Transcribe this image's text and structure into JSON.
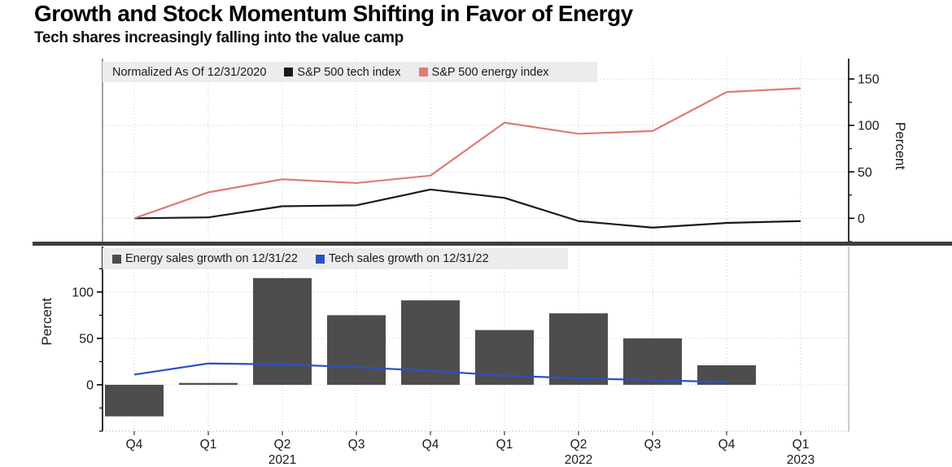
{
  "page": {
    "title": "Growth and Stock Momentum Shifting in Favor of Energy",
    "subtitle": "Tech shares increasingly falling into the value camp"
  },
  "colors": {
    "tech_index_line": "#1a1a1a",
    "energy_index_line": "#dd7c74",
    "energy_sales_bar": "#4d4d4d",
    "tech_sales_line": "#2a50c8",
    "legend_background": "#ececec",
    "divider": "#3f3f3f",
    "gridline": "#c9c9c9"
  },
  "chart_data": [
    {
      "type": "line",
      "panel": "top",
      "legend_note": "Normalized As Of 12/31/2020",
      "categories": [
        "Q4 2020",
        "Q1 2021",
        "Q2 2021",
        "Q3 2021",
        "Q4 2021",
        "Q1 2022",
        "Q2 2022",
        "Q3 2022",
        "Q4 2022",
        "Q1 2023"
      ],
      "series": [
        {
          "name": "S&P 500 tech index",
          "type": "line",
          "color": "#1a1a1a",
          "values": [
            0,
            1,
            13,
            14,
            31,
            22,
            -3,
            -10,
            -5,
            -3
          ]
        },
        {
          "name": "S&P 500 energy index",
          "type": "line",
          "color": "#dd7c74",
          "values": [
            0,
            28,
            42,
            38,
            46,
            103,
            91,
            94,
            136,
            140
          ]
        }
      ],
      "ylabel": "Percent",
      "yticks": [
        0,
        50,
        100,
        150
      ],
      "minor_tick_step": 25,
      "ylim": [
        -26,
        172
      ],
      "axis_side": "right",
      "grid": true,
      "legend_position": "top-inside"
    },
    {
      "type": "bar",
      "panel": "bottom",
      "categories": [
        "Q4 2020",
        "Q1 2021",
        "Q2 2021",
        "Q3 2021",
        "Q4 2021",
        "Q1 2022",
        "Q2 2022",
        "Q3 2022",
        "Q4 2022",
        "Q1 2023"
      ],
      "series": [
        {
          "name": "Energy sales growth on 12/31/22",
          "type": "bar",
          "color": "#4d4d4d",
          "values": [
            -34,
            2,
            115,
            75,
            91,
            59,
            77,
            50,
            21,
            null
          ]
        },
        {
          "name": "Tech sales growth on 12/31/22",
          "type": "line",
          "color": "#2a50c8",
          "values": [
            11,
            23,
            22,
            19,
            15,
            10,
            7,
            5,
            3,
            null
          ]
        }
      ],
      "ylabel": "Percent",
      "yticks": [
        0,
        50,
        100
      ],
      "minor_tick_step": 25,
      "ylim": [
        -50,
        149
      ],
      "axis_side": "left",
      "grid": true,
      "legend_position": "top-inside",
      "xtick_labels": [
        "Q4",
        "Q1",
        "Q2",
        "Q3",
        "Q4",
        "Q1",
        "Q2",
        "Q3",
        "Q4",
        "Q1"
      ],
      "year_labels": [
        {
          "text": "2021",
          "index": 2
        },
        {
          "text": "2022",
          "index": 6
        },
        {
          "text": "2023",
          "index": 9
        }
      ]
    }
  ]
}
